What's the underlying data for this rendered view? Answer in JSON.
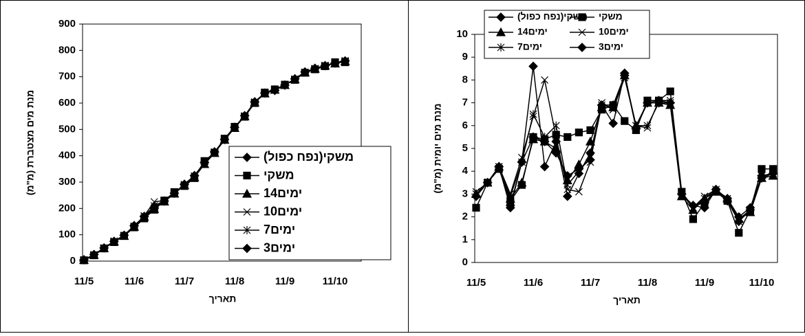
{
  "chart_data": [
    {
      "type": "line",
      "ylabel": "מנת מים מצטברת (מ\"מ)",
      "xlabel": "תאריך",
      "categories": [
        "11/5",
        null,
        null,
        null,
        null,
        "11/6",
        null,
        null,
        null,
        null,
        "11/7",
        null,
        null,
        null,
        null,
        "11/8",
        null,
        null,
        null,
        null,
        "11/9",
        null,
        null,
        null,
        null,
        "11/10",
        null
      ],
      "ylim": [
        0,
        900
      ],
      "yticks": [
        0,
        100,
        200,
        300,
        400,
        500,
        600,
        700,
        800,
        900
      ],
      "legend": "lower right",
      "series": [
        {
          "name": "משקי(נפח כפול)",
          "color": "#000000",
          "marker": "diamond",
          "values": [
            5,
            25,
            50,
            75,
            98,
            135,
            170,
            200,
            228,
            258,
            292,
            325,
            375,
            415,
            462,
            508,
            552,
            605,
            638,
            648,
            668,
            692,
            718,
            732,
            742,
            752,
            760
          ]
        },
        {
          "name": "משקי",
          "color": "#000000",
          "marker": "square",
          "values": [
            3,
            22,
            48,
            72,
            96,
            128,
            162,
            195,
            230,
            262,
            285,
            315,
            380,
            412,
            465,
            510,
            548,
            600,
            640,
            652,
            670,
            688,
            715,
            728,
            740,
            755,
            755
          ]
        },
        {
          "name": "14ימים",
          "color": "#000000",
          "marker": "triangle",
          "values": [
            4,
            23,
            49,
            74,
            95,
            130,
            168,
            198,
            226,
            256,
            288,
            318,
            368,
            410,
            460,
            505,
            550,
            602,
            636,
            650,
            668,
            690,
            716,
            730,
            742,
            750,
            758
          ]
        },
        {
          "name": "10ימים",
          "color": "#000000",
          "marker": "x",
          "values": [
            4,
            24,
            50,
            76,
            97,
            132,
            172,
            225,
            230,
            260,
            290,
            322,
            372,
            414,
            463,
            507,
            551,
            603,
            639,
            651,
            669,
            691,
            717,
            731,
            743,
            753,
            761
          ]
        },
        {
          "name": "7ימים",
          "color": "#000000",
          "marker": "star",
          "values": [
            5,
            24,
            50,
            75,
            97,
            133,
            170,
            210,
            229,
            259,
            291,
            323,
            372,
            413,
            462,
            507,
            551,
            604,
            638,
            650,
            668,
            691,
            717,
            731,
            742,
            752,
            760
          ]
        },
        {
          "name": "3ימים",
          "color": "#000000",
          "marker": "diamond",
          "values": [
            5,
            25,
            50,
            75,
            98,
            134,
            169,
            205,
            228,
            258,
            291,
            324,
            374,
            414,
            462,
            508,
            552,
            604,
            638,
            649,
            668,
            692,
            718,
            732,
            742,
            752,
            760
          ]
        }
      ]
    },
    {
      "type": "line",
      "ylabel": "מנת מים יומית (מ\"מ)",
      "xlabel": "תאריך",
      "categories": [
        "11/5",
        null,
        null,
        null,
        null,
        "11/6",
        null,
        null,
        null,
        null,
        "11/7",
        null,
        null,
        null,
        null,
        "11/8",
        null,
        null,
        null,
        null,
        "11/9",
        null,
        null,
        null,
        null,
        "11/10",
        null
      ],
      "ylim": [
        0,
        10
      ],
      "yticks": [
        0,
        1,
        2,
        3,
        4,
        5,
        6,
        7,
        8,
        9,
        10
      ],
      "legend": "upper left",
      "series": [
        {
          "name": "משקי(נפח כפול)",
          "color": "#000000",
          "marker": "diamond",
          "values": [
            2.9,
            3.5,
            4.2,
            2.4,
            4.4,
            8.6,
            4.2,
            5.3,
            2.9,
            3.9,
            4.8,
            6.9,
            6.1,
            8.3,
            5.9,
            7.0,
            7.1,
            7.0,
            3.0,
            2.5,
            2.4,
            3.2,
            2.7,
            1.8,
            2.3,
            3.7,
            3.9
          ]
        },
        {
          "name": "משקי",
          "color": "#000000",
          "marker": "square",
          "values": [
            2.4,
            3.5,
            4.1,
            2.7,
            3.4,
            5.5,
            5.4,
            5.6,
            5.5,
            5.7,
            5.8,
            6.7,
            6.9,
            6.2,
            5.8,
            7.1,
            7.1,
            7.5,
            3.1,
            1.9,
            2.6,
            3.1,
            2.7,
            1.3,
            2.3,
            4.1,
            4.1
          ]
        },
        {
          "name": "14ימים",
          "color": "#000000",
          "marker": "triangle",
          "values": [
            3.0,
            3.5,
            4.2,
            2.8,
            3.5,
            5.4,
            5.3,
            5.0,
            3.6,
            4.3,
            5.3,
            6.8,
            6.8,
            8.2,
            6.0,
            7.0,
            7.0,
            6.9,
            2.9,
            2.3,
            2.8,
            3.1,
            2.8,
            1.9,
            2.2,
            3.7,
            3.8
          ]
        },
        {
          "name": "10ימים",
          "color": "#000000",
          "marker": "x",
          "values": [
            3.1,
            3.5,
            4.2,
            3.0,
            4.6,
            6.4,
            8.0,
            5.5,
            3.2,
            3.1,
            4.4,
            7.0,
            6.7,
            8.1,
            6.0,
            5.9,
            7.1,
            7.1,
            3.1,
            2.4,
            2.9,
            3.2,
            2.8,
            1.8,
            2.3,
            3.8,
            3.9
          ]
        },
        {
          "name": "7ימים",
          "color": "#000000",
          "marker": "star",
          "values": [
            3.0,
            3.5,
            4.2,
            2.9,
            4.4,
            6.5,
            5.5,
            6.0,
            3.4,
            4.0,
            4.6,
            6.9,
            6.8,
            8.2,
            6.0,
            6.0,
            7.0,
            7.0,
            3.0,
            2.4,
            2.8,
            3.2,
            2.7,
            1.9,
            2.3,
            3.8,
            3.9
          ]
        },
        {
          "name": "3ימים",
          "color": "#000000",
          "marker": "diamond",
          "values": [
            2.9,
            3.5,
            4.2,
            2.5,
            4.4,
            5.5,
            5.3,
            4.8,
            3.8,
            4.1,
            4.5,
            6.9,
            6.9,
            8.2,
            5.9,
            7.0,
            7.0,
            7.0,
            3.0,
            2.5,
            2.6,
            3.2,
            2.8,
            2.0,
            2.4,
            3.8,
            3.9
          ]
        }
      ]
    }
  ]
}
